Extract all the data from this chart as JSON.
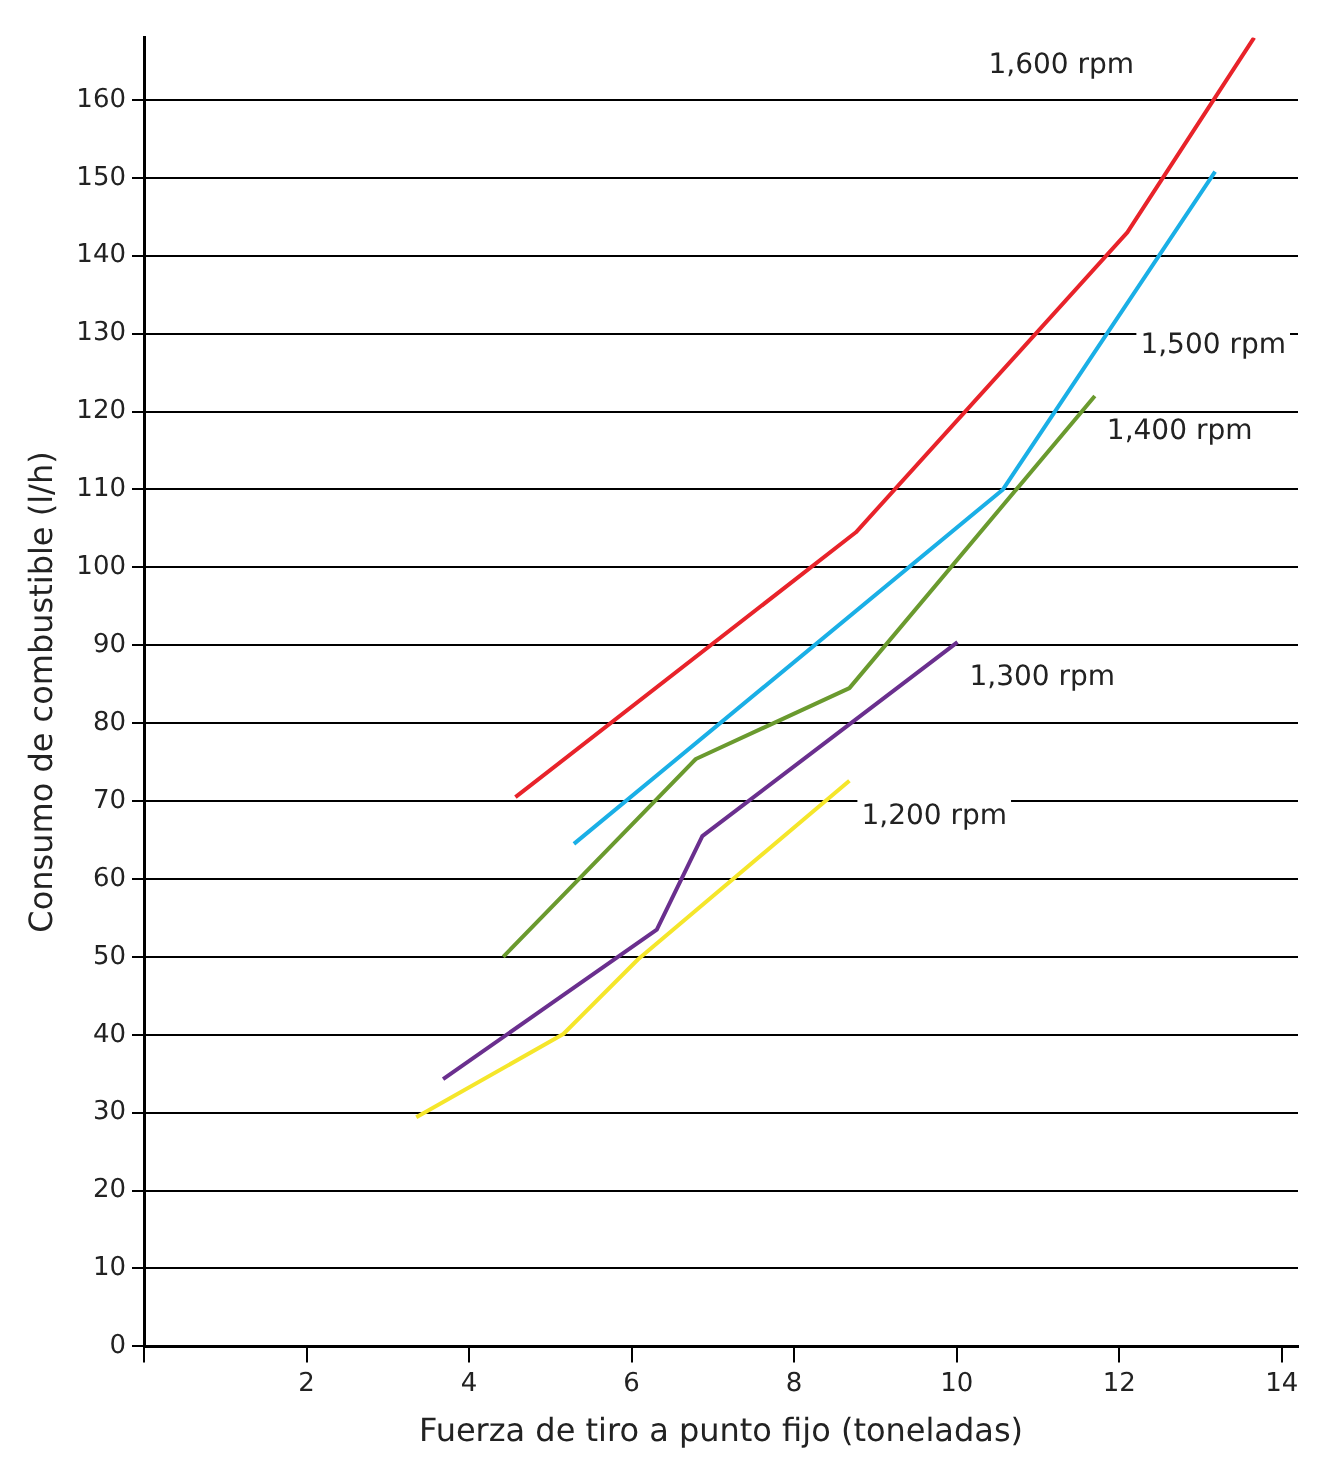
{
  "chart_data": {
    "type": "line",
    "xlabel": "Fuerza de tiro a punto fijo (toneladas)",
    "ylabel": "Consumo de combustible (l/h)",
    "xlim": [
      0,
      14.2
    ],
    "ylim": [
      0,
      168
    ],
    "xticks": [
      {
        "value": 0,
        "label": null
      },
      2,
      4,
      6,
      8,
      10,
      12,
      14
    ],
    "yticks": [
      0,
      10,
      20,
      30,
      40,
      50,
      60,
      70,
      80,
      90,
      100,
      110,
      120,
      130,
      140,
      150,
      160
    ],
    "grid": "y",
    "legend": false,
    "marker": "none",
    "line_style": "solid",
    "series": [
      {
        "name": "1,600 rpm",
        "color": "#e8232a",
        "x": [
          4.57,
          8.76,
          12.1,
          13.66
        ],
        "values": [
          70.5,
          104.5,
          143,
          168
        ]
      },
      {
        "name": "1,500 rpm",
        "color": "#1aafe6",
        "x": [
          5.29,
          10.57,
          13.18
        ],
        "values": [
          64.5,
          110,
          150.8
        ]
      },
      {
        "name": "1,400 rpm",
        "color": "#6a9a2e",
        "x": [
          4.42,
          6.79,
          8.68,
          11.7
        ],
        "values": [
          50,
          75.4,
          84.5,
          122
        ]
      },
      {
        "name": "1,300 rpm",
        "color": "#6a2f8e",
        "x": [
          3.68,
          6.31,
          6.87,
          10.01
        ],
        "values": [
          34.3,
          53.5,
          65.5,
          90.4
        ]
      },
      {
        "name": "1,200 rpm",
        "color": "#f5e62a",
        "x": [
          3.35,
          5.16,
          6.08,
          8.68
        ],
        "values": [
          29.4,
          40.1,
          49.7,
          72.6
        ]
      }
    ]
  }
}
